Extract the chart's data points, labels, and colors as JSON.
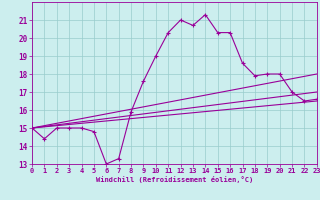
{
  "title": "",
  "xlabel": "Windchill (Refroidissement éolien,°C)",
  "background_color": "#cceeee",
  "line_color": "#990099",
  "grid_color": "#99cccc",
  "xmin": 0,
  "xmax": 23,
  "ymin": 13,
  "ymax": 22,
  "yticks": [
    13,
    14,
    15,
    16,
    17,
    18,
    19,
    20,
    21
  ],
  "xticks": [
    0,
    1,
    2,
    3,
    4,
    5,
    6,
    7,
    8,
    9,
    10,
    11,
    12,
    13,
    14,
    15,
    16,
    17,
    18,
    19,
    20,
    21,
    22,
    23
  ],
  "series1_x": [
    0,
    1,
    2,
    3,
    4,
    5,
    6,
    7,
    8,
    9,
    10,
    11,
    12,
    13,
    14,
    15,
    16,
    17,
    18,
    19,
    20,
    21,
    22,
    23
  ],
  "series1_y": [
    15.0,
    14.4,
    15.0,
    15.0,
    15.0,
    14.8,
    13.0,
    13.3,
    15.9,
    17.6,
    19.0,
    20.3,
    21.0,
    20.7,
    21.3,
    20.3,
    20.3,
    18.6,
    17.9,
    18.0,
    18.0,
    17.0,
    16.5,
    16.6
  ],
  "series2_x": [
    0,
    23
  ],
  "series2_y": [
    15.0,
    18.0
  ],
  "series3_x": [
    0,
    23
  ],
  "series3_y": [
    15.0,
    17.0
  ],
  "series4_x": [
    0,
    23
  ],
  "series4_y": [
    15.0,
    16.5
  ]
}
